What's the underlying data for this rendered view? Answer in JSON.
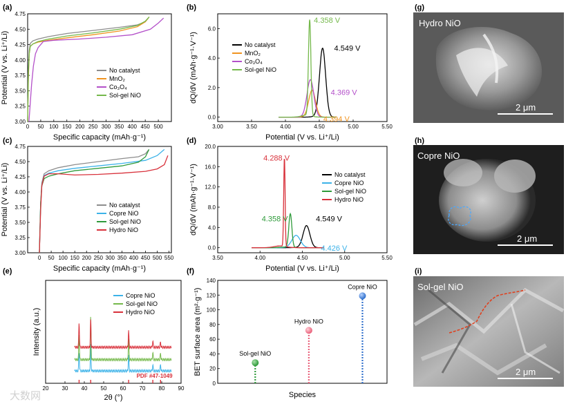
{
  "figure_panels": [
    "(a)",
    "(b)",
    "(c)",
    "(d)",
    "(e)",
    "(f)",
    "(g)",
    "(h)",
    "(i)"
  ],
  "colors": {
    "black": "#000000",
    "gray": "#8c8c8c",
    "orange": "#f0931f",
    "purple": "#b34fc9",
    "green": "#2e9a3a",
    "lightgreen": "#74b84a",
    "cyan": "#3bb2e8",
    "red": "#d8303a",
    "blue": "#2f6fcc",
    "pink": "#e9607a"
  },
  "chart_data": [
    {
      "id": "a",
      "label": "(a)",
      "type": "line",
      "xlabel": "Specific capacity (mAh·g⁻¹)",
      "ylabel": "Potential (V vs. Li⁺/Li)",
      "xlim": [
        0,
        550
      ],
      "ylim": [
        3.0,
        4.75
      ],
      "xticks": [
        "0",
        "50",
        "100",
        "150",
        "200",
        "250",
        "300",
        "350",
        "400",
        "450",
        "500"
      ],
      "yticks": [
        "3.00",
        "3.25",
        "3.50",
        "3.75",
        "4.00",
        "4.25",
        "4.50",
        "4.75"
      ],
      "legend_position": "center-right",
      "series": [
        {
          "name": "No catalyst",
          "color": "#8c8c8c",
          "x": [
            0,
            3,
            6,
            10,
            20,
            40,
            80,
            150,
            250,
            350,
            420,
            450,
            462
          ],
          "y": [
            3.0,
            3.85,
            4.15,
            4.27,
            4.31,
            4.34,
            4.38,
            4.43,
            4.48,
            4.53,
            4.57,
            4.62,
            4.68
          ]
        },
        {
          "name": "MnO₂",
          "color": "#f0931f",
          "x": [
            0,
            3,
            6,
            10,
            20,
            40,
            80,
            150,
            250,
            350,
            420,
            450,
            465
          ],
          "y": [
            3.0,
            3.7,
            4.1,
            4.22,
            4.26,
            4.29,
            4.32,
            4.36,
            4.41,
            4.47,
            4.54,
            4.62,
            4.7
          ]
        },
        {
          "name": "Co₃O₄",
          "color": "#b34fc9",
          "x": [
            5,
            10,
            15,
            22,
            30,
            40,
            50,
            60,
            100,
            200,
            300,
            400,
            470,
            500,
            520
          ],
          "y": [
            3.0,
            3.3,
            3.6,
            3.9,
            4.1,
            4.2,
            4.25,
            4.3,
            4.32,
            4.34,
            4.37,
            4.41,
            4.5,
            4.6,
            4.68
          ]
        },
        {
          "name": "Sol-gel NiO",
          "color": "#74b84a",
          "x": [
            0,
            3,
            6,
            10,
            20,
            40,
            80,
            150,
            250,
            350,
            420,
            450,
            465
          ],
          "y": [
            3.0,
            3.8,
            4.1,
            4.22,
            4.26,
            4.3,
            4.34,
            4.39,
            4.44,
            4.5,
            4.56,
            4.63,
            4.7
          ]
        }
      ]
    },
    {
      "id": "b",
      "label": "(b)",
      "type": "line",
      "xlabel": "Potential (V vs. Li⁺/Li)",
      "ylabel": "dQ/dV (mAh·g⁻¹·V⁻¹)",
      "xlim": [
        3.0,
        5.5
      ],
      "ylim": [
        -0.3,
        7.0
      ],
      "xticks": [
        "3.00",
        "3.50",
        "4.00",
        "4.50",
        "5.00",
        "5.50"
      ],
      "yticks": [
        "0.0",
        "2.0",
        "4.0",
        "6.0"
      ],
      "legend_position": "upper-left",
      "series": [
        {
          "name": "No catalyst",
          "color": "#000000",
          "peak": 4.549,
          "height": 4.6,
          "width": 0.045
        },
        {
          "name": "MnO₂",
          "color": "#f0931f",
          "peak": 4.394,
          "height": 1.8,
          "width": 0.05
        },
        {
          "name": "Co₃O₄",
          "color": "#b34fc9",
          "peak": 4.369,
          "height": 2.5,
          "width": 0.05
        },
        {
          "name": "Sol-gel NiO",
          "color": "#74b84a",
          "peak": 4.358,
          "height": 6.5,
          "width": 0.018
        }
      ],
      "annotations": [
        {
          "text": "4.358 V",
          "x": 4.42,
          "y": 6.4,
          "color": "#74b84a"
        },
        {
          "text": "4.549 V",
          "x": 4.72,
          "y": 4.5,
          "color": "#000000"
        },
        {
          "text": "4.369 V",
          "x": 4.67,
          "y": 1.5,
          "color": "#b34fc9"
        },
        {
          "text": "4.394 V",
          "x": 4.56,
          "y": -0.3,
          "color": "#f0931f"
        }
      ]
    },
    {
      "id": "c",
      "label": "(c)",
      "type": "line",
      "xlabel": "Specific capacity (mAh·g⁻¹)",
      "ylabel": "Potential (V vs. Li⁺/Li)",
      "xlim": [
        -50,
        560
      ],
      "ylim": [
        3.0,
        4.75
      ],
      "xticks": [
        "0",
        "50",
        "100",
        "150",
        "200",
        "250",
        "300",
        "350",
        "400",
        "450",
        "500",
        "550"
      ],
      "yticks": [
        "3.00",
        "3.25",
        "3.50",
        "3.75",
        "4.00",
        "4.25",
        "4.50",
        "4.75"
      ],
      "legend_position": "center-right",
      "series": [
        {
          "name": "No catalyst",
          "color": "#8c8c8c",
          "x": [
            0,
            5,
            10,
            20,
            40,
            80,
            150,
            250,
            350,
            420,
            450,
            465
          ],
          "y": [
            3.0,
            3.8,
            4.15,
            4.3,
            4.35,
            4.4,
            4.45,
            4.5,
            4.55,
            4.58,
            4.63,
            4.7
          ]
        },
        {
          "name": "Copre NiO",
          "color": "#3bb2e8",
          "x": [
            0,
            5,
            10,
            20,
            40,
            80,
            150,
            250,
            350,
            450,
            500,
            530
          ],
          "y": [
            3.0,
            3.8,
            4.1,
            4.27,
            4.31,
            4.35,
            4.39,
            4.43,
            4.47,
            4.52,
            4.6,
            4.7
          ]
        },
        {
          "name": "Sol-gel NiO",
          "color": "#2e9a3a",
          "x": [
            0,
            5,
            10,
            20,
            40,
            80,
            150,
            250,
            350,
            420,
            450,
            465
          ],
          "y": [
            3.0,
            3.8,
            4.1,
            4.22,
            4.26,
            4.3,
            4.35,
            4.39,
            4.43,
            4.49,
            4.58,
            4.7
          ]
        },
        {
          "name": "Hydro NiO",
          "color": "#d8303a",
          "x": [
            0,
            5,
            10,
            20,
            40,
            80,
            150,
            250,
            350,
            450,
            500,
            530,
            545
          ],
          "y": [
            3.0,
            3.7,
            4.1,
            4.26,
            4.3,
            4.3,
            4.28,
            4.29,
            4.31,
            4.34,
            4.38,
            4.45,
            4.6
          ]
        }
      ]
    },
    {
      "id": "d",
      "label": "(d)",
      "type": "line",
      "xlabel": "Potential (V vs. Li⁺/Li)",
      "ylabel": "dQ/dV (mAh·g⁻¹·V⁻¹)",
      "xlim": [
        3.5,
        5.5
      ],
      "ylim": [
        -1.0,
        20.0
      ],
      "xticks": [
        "3.50",
        "4.00",
        "4.50",
        "5.00",
        "5.50"
      ],
      "yticks": [
        "0.0",
        "4.0",
        "8.0",
        "12.0",
        "16.0",
        "20.0"
      ],
      "legend_position": "center-right",
      "series": [
        {
          "name": "No catalyst",
          "color": "#000000",
          "peak": 4.549,
          "height": 4.3,
          "width": 0.04
        },
        {
          "name": "Copre NiO",
          "color": "#3bb2e8",
          "peak": 4.426,
          "height": 2.4,
          "width": 0.05
        },
        {
          "name": "Sol-gel NiO",
          "color": "#2e9a3a",
          "peak": 4.358,
          "height": 6.6,
          "width": 0.018
        },
        {
          "name": "Hydro NiO",
          "color": "#d8303a",
          "peak": 4.288,
          "height": 17.7,
          "width": 0.008
        }
      ],
      "annotations": [
        {
          "text": "4.288 V",
          "x": 4.04,
          "y": 17.2,
          "color": "#d8303a"
        },
        {
          "text": "4.358 V",
          "x": 4.02,
          "y": 5.2,
          "color": "#2e9a3a"
        },
        {
          "text": "4.549 V",
          "x": 4.66,
          "y": 5.2,
          "color": "#000000"
        },
        {
          "text": "4.426 V",
          "x": 4.72,
          "y": -0.6,
          "color": "#3bb2e8"
        }
      ]
    },
    {
      "id": "e",
      "label": "(e)",
      "type": "line",
      "xlabel": "2θ (°)",
      "ylabel": "Intensity (a.u.)",
      "xlim": [
        20,
        90
      ],
      "ylim": [
        0,
        10
      ],
      "xticks": [
        "20",
        "30",
        "40",
        "50",
        "60",
        "70",
        "80",
        "90"
      ],
      "legend_position": "top-right",
      "series": [
        {
          "name": "Copre NiO",
          "color": "#3bb2e8",
          "offset": 1.2,
          "peaks": [
            [
              37.3,
              1.8
            ],
            [
              43.3,
              2.6
            ],
            [
              62.9,
              1.5
            ],
            [
              75.4,
              0.6
            ],
            [
              79.4,
              0.6
            ]
          ]
        },
        {
          "name": "Sol-gel NiO",
          "color": "#74b84a",
          "offset": 2.3,
          "peaks": [
            [
              37.3,
              2.5
            ],
            [
              43.3,
              4.2
            ],
            [
              62.9,
              2.0
            ],
            [
              75.4,
              0.7
            ],
            [
              79.4,
              0.6
            ]
          ]
        },
        {
          "name": "Hydro NiO",
          "color": "#d8303a",
          "offset": 3.5,
          "peaks": [
            [
              37.3,
              2.4
            ],
            [
              43.3,
              2.7
            ],
            [
              62.9,
              1.6
            ],
            [
              75.4,
              0.6
            ],
            [
              79.4,
              0.5
            ]
          ]
        }
      ],
      "reference": {
        "label": "PDF #47-1049",
        "positions": [
          37.3,
          43.3,
          62.9,
          75.4,
          79.4
        ],
        "color": "#d8303a"
      }
    },
    {
      "id": "f",
      "label": "(f)",
      "type": "scatter",
      "xlabel": "Species",
      "ylabel": "BET surface area (m²·g⁻¹)",
      "ylim": [
        0,
        140
      ],
      "yticks": [
        "0",
        "20",
        "40",
        "60",
        "80",
        "100",
        "120",
        "140"
      ],
      "categories": [
        "Sol-gel NiO",
        "Hydro NiO",
        "Copre NiO"
      ],
      "values": [
        28,
        72,
        119
      ],
      "point_colors": [
        "#2e9a3a",
        "#e9607a",
        "#2f6fcc"
      ]
    }
  ],
  "sem_images": [
    {
      "panel": "(g)",
      "label": "Hydro NiO",
      "scale_bar": "2 μm"
    },
    {
      "panel": "(h)",
      "label": "Copre NiO",
      "scale_bar": "2 μm"
    },
    {
      "panel": "(i)",
      "label": "Sol-gel NiO",
      "scale_bar": "2 μm"
    }
  ],
  "watermark": "大数网"
}
